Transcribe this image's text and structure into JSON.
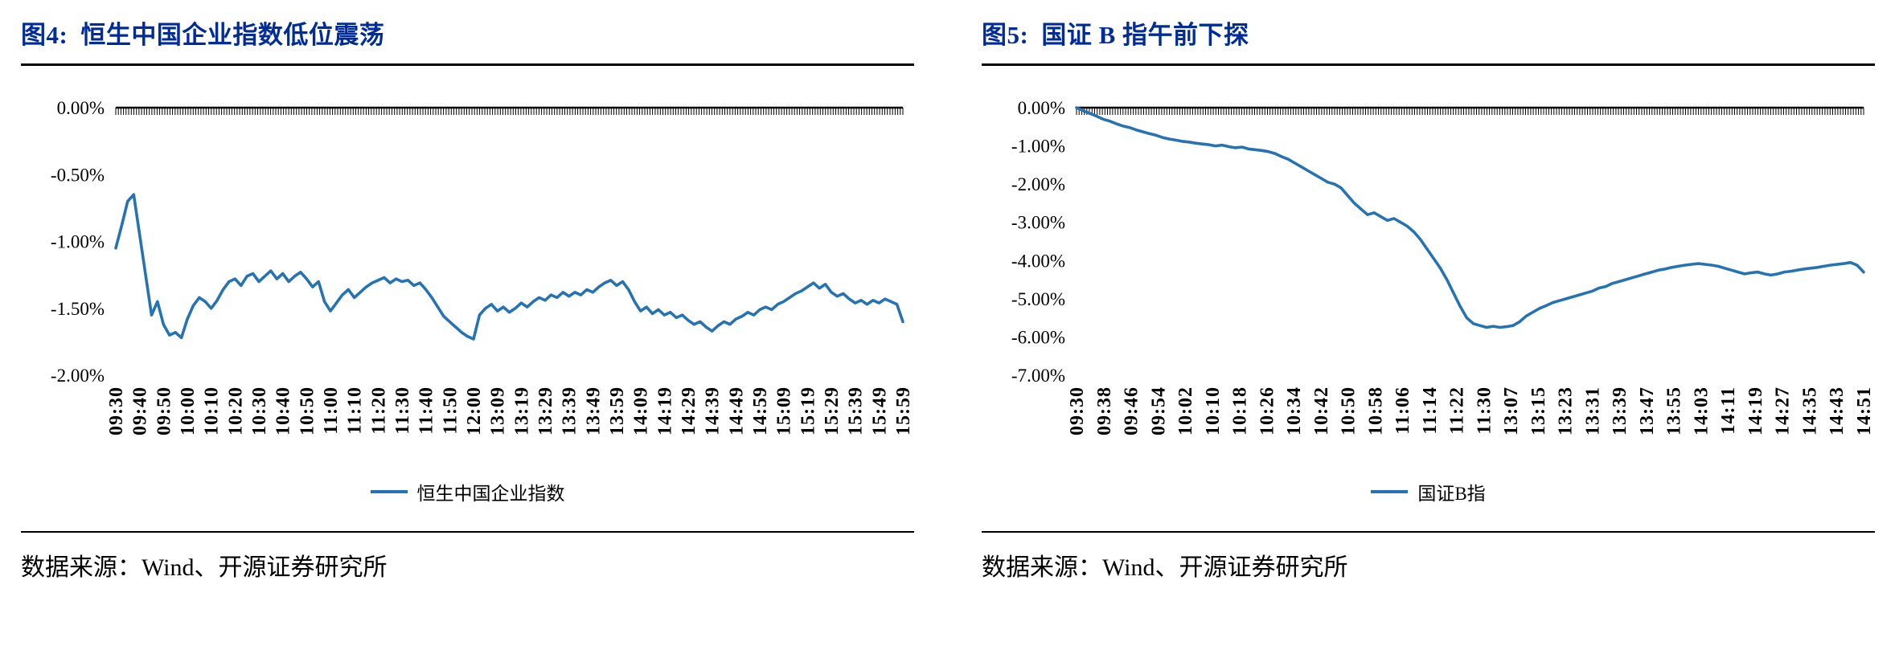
{
  "colors": {
    "title": "#002C9A",
    "axis": "#000000",
    "line": "#2673B4"
  },
  "chart_data": [
    {
      "figure_label": "图4:",
      "title": "恒生中国企业指数低位震荡",
      "source": "数据来源：Wind、开源证券研究所",
      "type": "line",
      "grid": false,
      "legend_position": "bottom",
      "ylim": [
        -2.0,
        0.0
      ],
      "yticks": [
        0.0,
        -0.5,
        -1.0,
        -1.5,
        -2.0
      ],
      "ytick_labels": [
        "0.00%",
        "-0.50%",
        "-1.00%",
        "-1.50%",
        "-2.00%"
      ],
      "x_labels": [
        "09:30",
        "09:40",
        "09:50",
        "10:00",
        "10:10",
        "10:20",
        "10:30",
        "10:40",
        "10:50",
        "11:00",
        "11:10",
        "11:20",
        "11:30",
        "11:40",
        "11:50",
        "12:00",
        "13:09",
        "13:19",
        "13:29",
        "13:39",
        "13:49",
        "13:59",
        "14:09",
        "14:19",
        "14:29",
        "14:39",
        "14:49",
        "14:59",
        "15:09",
        "15:19",
        "15:29",
        "15:39",
        "15:49",
        "15:59"
      ],
      "series": [
        {
          "name": "恒生中国企业指数",
          "color": "#2673B4",
          "values": [
            -1.05,
            -0.88,
            -0.7,
            -0.65,
            -0.95,
            -1.25,
            -1.55,
            -1.45,
            -1.62,
            -1.7,
            -1.68,
            -1.72,
            -1.58,
            -1.48,
            -1.42,
            -1.45,
            -1.5,
            -1.44,
            -1.36,
            -1.3,
            -1.28,
            -1.33,
            -1.26,
            -1.24,
            -1.3,
            -1.26,
            -1.22,
            -1.28,
            -1.24,
            -1.3,
            -1.26,
            -1.23,
            -1.28,
            -1.34,
            -1.3,
            -1.45,
            -1.52,
            -1.46,
            -1.4,
            -1.36,
            -1.42,
            -1.38,
            -1.34,
            -1.31,
            -1.29,
            -1.27,
            -1.31,
            -1.28,
            -1.3,
            -1.29,
            -1.33,
            -1.31,
            -1.36,
            -1.42,
            -1.49,
            -1.56,
            -1.6,
            -1.64,
            -1.68,
            -1.71,
            -1.73,
            -1.55,
            -1.5,
            -1.47,
            -1.52,
            -1.49,
            -1.53,
            -1.5,
            -1.46,
            -1.49,
            -1.45,
            -1.42,
            -1.44,
            -1.4,
            -1.42,
            -1.38,
            -1.41,
            -1.38,
            -1.4,
            -1.36,
            -1.38,
            -1.34,
            -1.31,
            -1.29,
            -1.33,
            -1.3,
            -1.36,
            -1.45,
            -1.52,
            -1.49,
            -1.54,
            -1.51,
            -1.55,
            -1.53,
            -1.57,
            -1.55,
            -1.59,
            -1.62,
            -1.6,
            -1.64,
            -1.67,
            -1.63,
            -1.6,
            -1.62,
            -1.58,
            -1.56,
            -1.53,
            -1.55,
            -1.51,
            -1.49,
            -1.51,
            -1.47,
            -1.45,
            -1.42,
            -1.39,
            -1.37,
            -1.34,
            -1.31,
            -1.35,
            -1.32,
            -1.38,
            -1.41,
            -1.39,
            -1.43,
            -1.46,
            -1.44,
            -1.47,
            -1.44,
            -1.46,
            -1.43,
            -1.45,
            -1.47,
            -1.6
          ]
        }
      ]
    },
    {
      "figure_label": "图5:",
      "title": "国证 B 指午前下探",
      "source": "数据来源：Wind、开源证券研究所",
      "type": "line",
      "grid": false,
      "legend_position": "bottom",
      "ylim": [
        -7.0,
        0.0
      ],
      "yticks": [
        0.0,
        -1.0,
        -2.0,
        -3.0,
        -4.0,
        -5.0,
        -6.0,
        -7.0
      ],
      "ytick_labels": [
        "0.00%",
        "-1.00%",
        "-2.00%",
        "-3.00%",
        "-4.00%",
        "-5.00%",
        "-6.00%",
        "-7.00%"
      ],
      "x_labels": [
        "09:30",
        "09:38",
        "09:46",
        "09:54",
        "10:02",
        "10:10",
        "10:18",
        "10:26",
        "10:34",
        "10:42",
        "10:50",
        "10:58",
        "11:06",
        "11:14",
        "11:22",
        "11:30",
        "13:07",
        "13:15",
        "13:23",
        "13:31",
        "13:39",
        "13:47",
        "13:55",
        "14:03",
        "14:11",
        "14:19",
        "14:27",
        "14:35",
        "14:43",
        "14:51"
      ],
      "series": [
        {
          "name": "国证B指",
          "color": "#2673B4",
          "values": [
            0.0,
            -0.08,
            -0.15,
            -0.22,
            -0.3,
            -0.35,
            -0.42,
            -0.48,
            -0.52,
            -0.58,
            -0.63,
            -0.68,
            -0.72,
            -0.78,
            -0.82,
            -0.85,
            -0.88,
            -0.9,
            -0.93,
            -0.95,
            -0.97,
            -1.0,
            -0.98,
            -1.02,
            -1.05,
            -1.03,
            -1.08,
            -1.1,
            -1.12,
            -1.15,
            -1.2,
            -1.28,
            -1.35,
            -1.45,
            -1.55,
            -1.65,
            -1.75,
            -1.85,
            -1.95,
            -2.0,
            -2.1,
            -2.3,
            -2.5,
            -2.65,
            -2.8,
            -2.75,
            -2.85,
            -2.95,
            -2.9,
            -3.0,
            -3.1,
            -3.25,
            -3.45,
            -3.7,
            -3.95,
            -4.2,
            -4.5,
            -4.85,
            -5.2,
            -5.5,
            -5.65,
            -5.7,
            -5.75,
            -5.72,
            -5.75,
            -5.73,
            -5.7,
            -5.6,
            -5.45,
            -5.35,
            -5.25,
            -5.18,
            -5.1,
            -5.05,
            -5.0,
            -4.95,
            -4.9,
            -4.85,
            -4.8,
            -4.72,
            -4.68,
            -4.6,
            -4.55,
            -4.5,
            -4.45,
            -4.4,
            -4.35,
            -4.3,
            -4.25,
            -4.22,
            -4.18,
            -4.15,
            -4.12,
            -4.1,
            -4.08,
            -4.1,
            -4.12,
            -4.15,
            -4.2,
            -4.25,
            -4.3,
            -4.35,
            -4.32,
            -4.3,
            -4.35,
            -4.38,
            -4.35,
            -4.3,
            -4.28,
            -4.25,
            -4.22,
            -4.2,
            -4.18,
            -4.15,
            -4.12,
            -4.1,
            -4.08,
            -4.05,
            -4.12,
            -4.3
          ]
        }
      ]
    }
  ]
}
